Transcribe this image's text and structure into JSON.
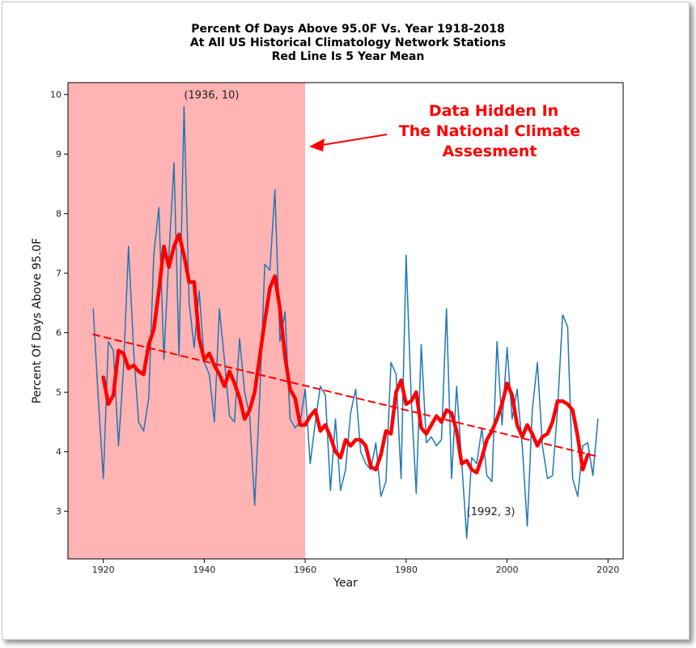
{
  "chart_data": {
    "type": "line",
    "title_lines": [
      "Percent Of Days Above 95.0F Vs. Year 1918-2018",
      "At All US Historical Climatology Network Stations",
      "Red Line Is 5 Year Mean"
    ],
    "xlabel": "Year",
    "ylabel": "Percent Of Days Above 95.0F",
    "xlim": [
      1913,
      2023
    ],
    "ylim": [
      2.2,
      10.2
    ],
    "xticks": [
      1920,
      1940,
      1960,
      1980,
      2000,
      2020
    ],
    "yticks": [
      3,
      4,
      5,
      6,
      7,
      8,
      9,
      10
    ],
    "grid": false,
    "shaded_region": {
      "x": [
        1913,
        1960
      ],
      "color": "#ffb3b3"
    },
    "series": [
      {
        "color": "#1f77b4",
        "x": [
          1918,
          1919,
          1920,
          1921,
          1922,
          1923,
          1924,
          1925,
          1926,
          1927,
          1928,
          1929,
          1930,
          1931,
          1932,
          1933,
          1934,
          1935,
          1936,
          1937,
          1938,
          1939,
          1940,
          1941,
          1942,
          1943,
          1944,
          1945,
          1946,
          1947,
          1948,
          1949,
          1950,
          1951,
          1952,
          1953,
          1954,
          1955,
          1956,
          1957,
          1958,
          1959,
          1960,
          1961,
          1962,
          1963,
          1964,
          1965,
          1966,
          1967,
          1968,
          1969,
          1970,
          1971,
          1972,
          1973,
          1974,
          1975,
          1976,
          1977,
          1978,
          1979,
          1980,
          1981,
          1982,
          1983,
          1984,
          1985,
          1986,
          1987,
          1988,
          1989,
          1990,
          1991,
          1992,
          1993,
          1994,
          1995,
          1996,
          1997,
          1998,
          1999,
          2000,
          2001,
          2002,
          2003,
          2004,
          2005,
          2006,
          2007,
          2008,
          2009,
          2010,
          2011,
          2012,
          2013,
          2014,
          2015,
          2016,
          2017,
          2018
        ],
        "y": [
          6.4,
          4.9,
          3.55,
          5.85,
          5.7,
          4.1,
          5.4,
          7.45,
          5.7,
          4.5,
          4.35,
          4.9,
          7.3,
          8.1,
          5.55,
          7.3,
          8.85,
          5.6,
          9.8,
          6.5,
          5.75,
          6.7,
          5.5,
          5.3,
          4.5,
          6.4,
          5.55,
          4.6,
          4.5,
          5.9,
          5.0,
          4.6,
          3.1,
          4.95,
          7.15,
          7.05,
          8.4,
          5.85,
          6.35,
          4.55,
          4.4,
          4.5,
          5.05,
          3.8,
          4.5,
          5.1,
          4.95,
          3.35,
          4.55,
          3.35,
          3.7,
          4.65,
          5.05,
          4.0,
          3.8,
          3.7,
          4.15,
          3.25,
          3.5,
          5.5,
          5.3,
          3.55,
          7.3,
          4.9,
          3.3,
          5.8,
          4.15,
          4.25,
          4.1,
          4.2,
          6.4,
          3.55,
          5.1,
          3.85,
          2.55,
          3.9,
          3.8,
          4.4,
          3.6,
          3.5,
          5.85,
          4.45,
          5.75,
          4.55,
          5.05,
          4.1,
          2.75,
          4.7,
          5.5,
          4.1,
          3.55,
          3.6,
          4.7,
          6.3,
          6.1,
          3.55,
          3.25,
          4.1,
          4.15,
          3.6,
          4.55
        ]
      },
      {
        "color": "#ff0000",
        "x": [
          1920,
          1921,
          1922,
          1923,
          1924,
          1925,
          1926,
          1927,
          1928,
          1929,
          1930,
          1931,
          1932,
          1933,
          1934,
          1935,
          1936,
          1937,
          1938,
          1939,
          1940,
          1941,
          1942,
          1943,
          1944,
          1945,
          1946,
          1947,
          1948,
          1949,
          1950,
          1951,
          1952,
          1953,
          1954,
          1955,
          1956,
          1957,
          1958,
          1959,
          1960,
          1961,
          1962,
          1963,
          1964,
          1965,
          1966,
          1967,
          1968,
          1969,
          1970,
          1971,
          1972,
          1973,
          1974,
          1975,
          1976,
          1977,
          1978,
          1979,
          1980,
          1981,
          1982,
          1983,
          1984,
          1985,
          1986,
          1987,
          1988,
          1989,
          1990,
          1991,
          1992,
          1993,
          1994,
          1995,
          1996,
          1997,
          1998,
          1999,
          2000,
          2001,
          2002,
          2003,
          2004,
          2005,
          2006,
          2007,
          2008,
          2009,
          2010,
          2011,
          2012,
          2013,
          2014,
          2015,
          2016
        ],
        "y": [
          5.25,
          4.8,
          4.95,
          5.7,
          5.65,
          5.4,
          5.45,
          5.35,
          5.3,
          5.8,
          6.05,
          6.7,
          7.45,
          7.1,
          7.45,
          7.65,
          7.3,
          6.85,
          6.85,
          5.9,
          5.55,
          5.65,
          5.45,
          5.3,
          5.1,
          5.35,
          5.15,
          4.9,
          4.55,
          4.7,
          5.0,
          5.6,
          6.2,
          6.75,
          6.95,
          6.4,
          5.6,
          5.05,
          4.9,
          4.45,
          4.45,
          4.6,
          4.7,
          4.35,
          4.45,
          4.25,
          4.0,
          3.9,
          4.2,
          4.1,
          4.2,
          4.2,
          4.1,
          3.75,
          3.7,
          3.95,
          4.35,
          4.3,
          5.0,
          5.2,
          4.8,
          4.85,
          5.0,
          4.4,
          4.3,
          4.45,
          4.6,
          4.5,
          4.7,
          4.65,
          4.35,
          3.8,
          3.85,
          3.7,
          3.65,
          3.9,
          4.2,
          4.35,
          4.55,
          4.8,
          5.15,
          4.95,
          4.45,
          4.25,
          4.45,
          4.3,
          4.1,
          4.25,
          4.3,
          4.5,
          4.85,
          4.85,
          4.8,
          4.7,
          4.25,
          3.7,
          3.95
        ]
      },
      {
        "color": "#ff0000",
        "dashed": true,
        "x": [
          1918,
          2018
        ],
        "y": [
          5.97,
          3.92
        ]
      }
    ],
    "annotations": [
      {
        "text": "(1936, 10)",
        "x": 1936,
        "y": 10
      },
      {
        "text": "(1992, 3)",
        "x": 1992,
        "y": 3
      }
    ],
    "callout": {
      "lines": [
        "Data Hidden In",
        "The National Climate",
        "Assesment"
      ],
      "color": "#ff0000",
      "arrow_points_to": "shaded region"
    }
  }
}
